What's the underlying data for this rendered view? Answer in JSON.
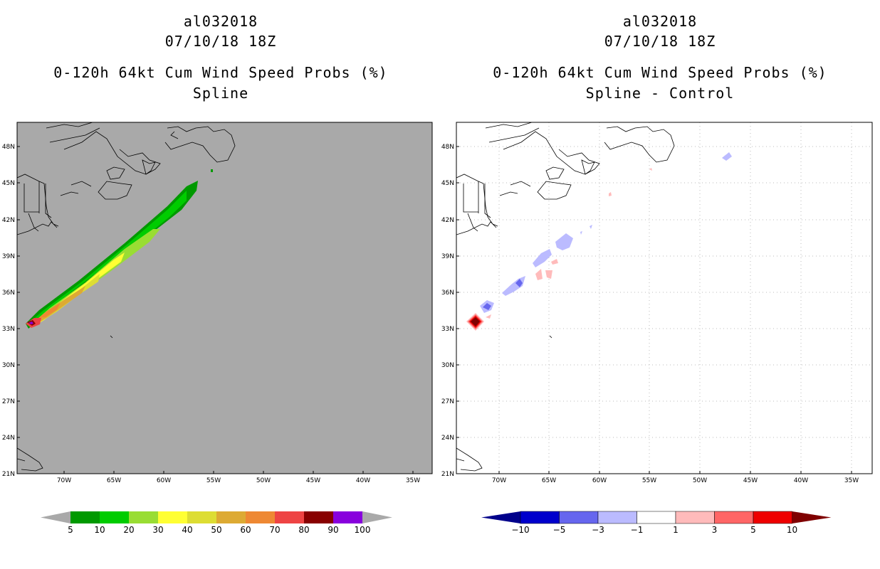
{
  "panels": [
    {
      "storm_id": "al032018",
      "datetime": "07/10/18 18Z",
      "product": "0-120h 64kt Cum Wind Speed Probs (%)",
      "variant": "Spline",
      "background": "#a9a9a9"
    },
    {
      "storm_id": "al032018",
      "datetime": "07/10/18 18Z",
      "product": "0-120h 64kt Cum Wind Speed Probs (%)",
      "variant": "Spline - Control",
      "background": "#ffffff"
    }
  ],
  "axes": {
    "lat_labels": [
      "48N",
      "45N",
      "42N",
      "39N",
      "36N",
      "33N",
      "30N",
      "27N",
      "24N",
      "21N"
    ],
    "lon_labels": [
      "70W",
      "65W",
      "60W",
      "55W",
      "50W",
      "45W",
      "40W",
      "35W"
    ]
  },
  "colorbar_prob": {
    "labels": [
      "5",
      "10",
      "20",
      "30",
      "40",
      "50",
      "60",
      "70",
      "80",
      "90",
      "100"
    ],
    "colors": [
      "#009900",
      "#00cc00",
      "#99dd33",
      "#ffff33",
      "#dddd33",
      "#ddaa33",
      "#ee8833",
      "#ee4444",
      "#880000",
      "#8800dd"
    ],
    "end_color": "#a9a9a9"
  },
  "colorbar_diff": {
    "labels": [
      "-10",
      "-5",
      "-3",
      "-1",
      "1",
      "3",
      "5",
      "10"
    ],
    "colors": [
      "#0000cc",
      "#6666ee",
      "#bbbbff",
      "#ffffff",
      "#ffbbbb",
      "#ff6666",
      "#ee0000"
    ],
    "end_low": "#00008b",
    "end_high": "#7f0000"
  }
}
